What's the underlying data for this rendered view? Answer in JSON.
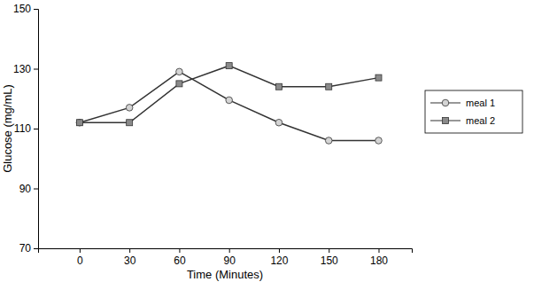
{
  "chart_data": {
    "type": "line",
    "x_label": "Time (Minutes)",
    "y_label": "Glucose (mg/mL)",
    "x": [
      0,
      30,
      60,
      90,
      120,
      150,
      180
    ],
    "xlim": [
      -25,
      200
    ],
    "xticks": [
      0,
      30,
      60,
      90,
      120,
      150,
      180
    ],
    "ylim": [
      70,
      150
    ],
    "yticks": [
      70,
      90,
      110,
      130,
      150
    ],
    "grid": false,
    "legend": "right",
    "series": [
      {
        "name": "meal 1",
        "color": "#333333",
        "marker": "circle",
        "line_style": "solid",
        "values": [
          112,
          117,
          129,
          119.5,
          112,
          106,
          106
        ]
      },
      {
        "name": "meal 2",
        "color": "#333333",
        "marker": "square",
        "line_style": "solid",
        "values": [
          112,
          112,
          125,
          131,
          124,
          124,
          127
        ]
      }
    ]
  }
}
